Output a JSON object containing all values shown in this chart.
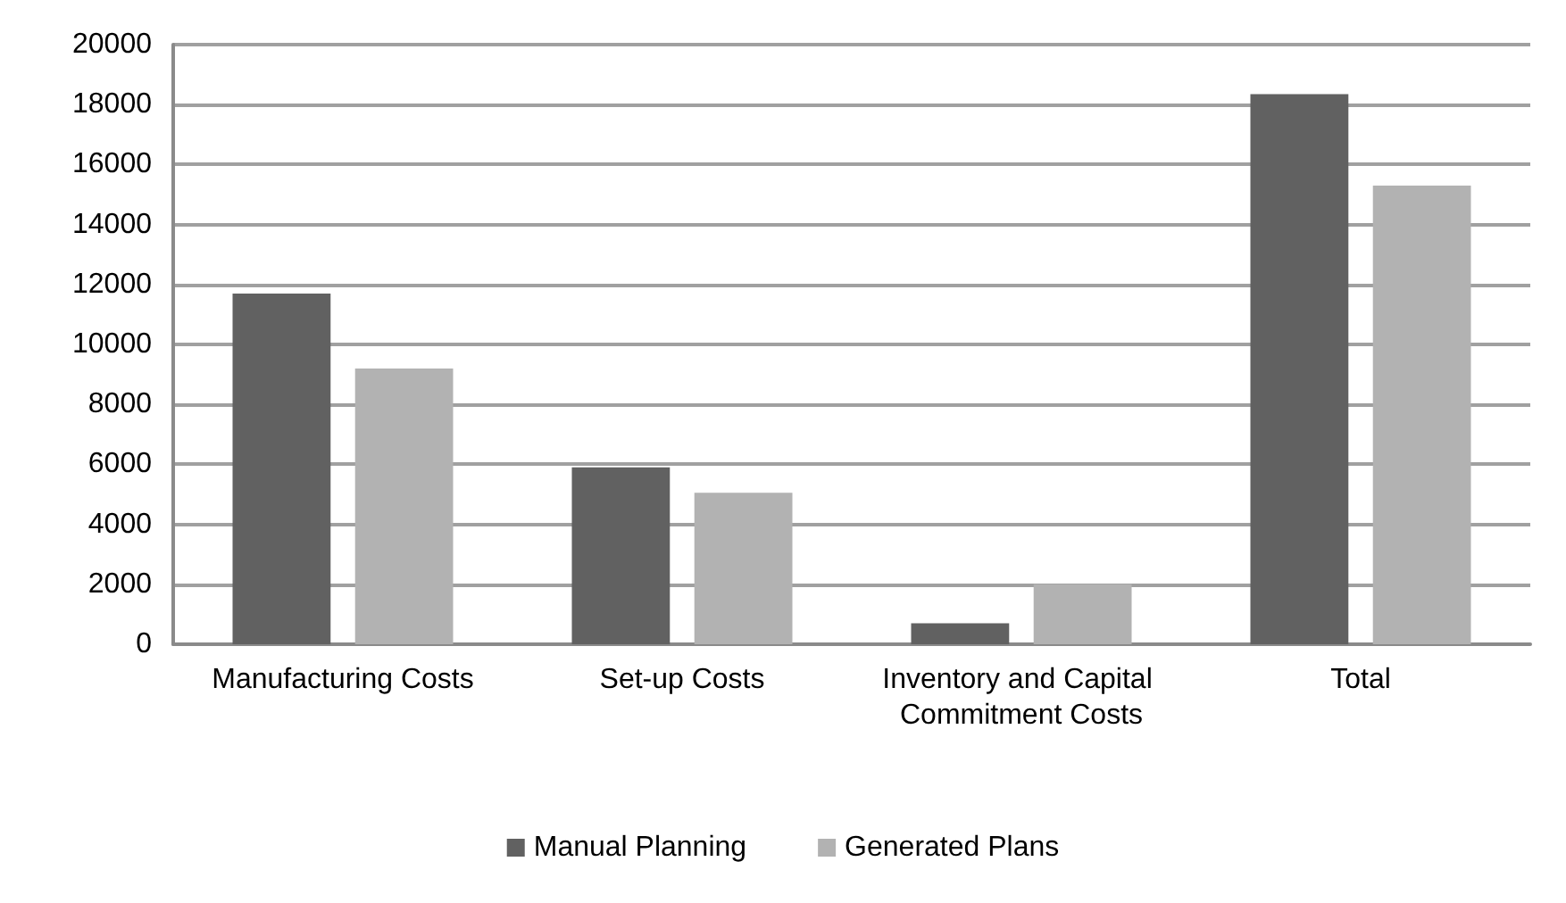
{
  "chart_data": {
    "type": "bar",
    "categories": [
      "Manufacturing Costs",
      "Set-up Costs",
      "Inventory and Capital Commitment Costs",
      "Total"
    ],
    "series": [
      {
        "name": "Manual Planning",
        "color": "#616161",
        "values": [
          11700,
          5900,
          700,
          18350
        ]
      },
      {
        "name": "Generated Plans",
        "color": "#b2b2b2",
        "values": [
          9200,
          5050,
          2000,
          15300
        ]
      }
    ],
    "ylim": [
      0,
      20000
    ],
    "yticks": [
      0,
      2000,
      4000,
      6000,
      8000,
      10000,
      12000,
      14000,
      16000,
      18000,
      20000
    ],
    "grid": "y",
    "legend": "bottom"
  }
}
